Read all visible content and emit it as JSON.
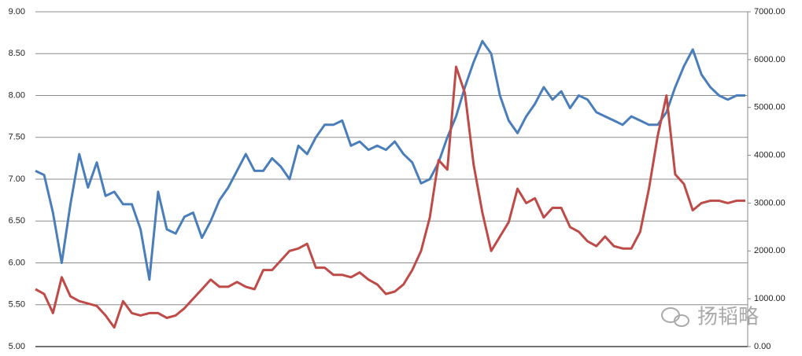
{
  "chart_data": {
    "type": "line",
    "categories": [
      null,
      null,
      null,
      null,
      null,
      null,
      null,
      null,
      null,
      null,
      null,
      null,
      null,
      null,
      null,
      null,
      null,
      null,
      null,
      null,
      null,
      null,
      null,
      null,
      null,
      null,
      null,
      null,
      null,
      null,
      null,
      null,
      null,
      null,
      null,
      null,
      null,
      null,
      null,
      null,
      null,
      null,
      null,
      null,
      null,
      null,
      null,
      null,
      null,
      null,
      null,
      null,
      null,
      null,
      null,
      null,
      null,
      null,
      null,
      null,
      null,
      null,
      null,
      null,
      null,
      null,
      null,
      null,
      null,
      null,
      null,
      null,
      null,
      null,
      null,
      null,
      null,
      null,
      null,
      null,
      null,
      null
    ],
    "series": [
      {
        "color": "#4a7ebb",
        "values": [
          7.1,
          7.05,
          6.6,
          6.0,
          6.7,
          7.3,
          6.9,
          7.2,
          6.8,
          6.85,
          6.7,
          6.7,
          6.4,
          5.8,
          6.85,
          6.4,
          6.35,
          6.55,
          6.6,
          6.3,
          6.5,
          6.75,
          6.9,
          7.1,
          7.3,
          7.1,
          7.1,
          7.25,
          7.15,
          7.0,
          7.4,
          7.3,
          7.5,
          7.65,
          7.65,
          7.7,
          7.4,
          7.45,
          7.35,
          7.4,
          7.35,
          7.45,
          7.3,
          7.2,
          6.95,
          7.0,
          7.2,
          7.5,
          7.75,
          8.1,
          8.4,
          8.65,
          8.5,
          8.0,
          7.7,
          7.55,
          7.75,
          7.9,
          8.1,
          7.95,
          8.05,
          7.85,
          8.0,
          7.95,
          7.8,
          7.75,
          7.7,
          7.65,
          7.75,
          7.7,
          7.65,
          7.65,
          7.8,
          8.1,
          8.35,
          8.55,
          8.25,
          8.1,
          8.0,
          7.95,
          8.0,
          8.0
        ]
      },
      {
        "color": "#be4b48",
        "axis": "y2",
        "values": [
          1200,
          1100,
          700,
          1450,
          1050,
          950,
          900,
          850,
          650,
          400,
          950,
          700,
          650,
          700,
          700,
          600,
          650,
          800,
          1000,
          1200,
          1400,
          1250,
          1250,
          1350,
          1250,
          1200,
          1600,
          1600,
          1800,
          2000,
          2050,
          2150,
          1650,
          1650,
          1500,
          1500,
          1450,
          1550,
          1400,
          1300,
          1100,
          1150,
          1300,
          1600,
          2000,
          2700,
          3900,
          3700,
          5850,
          5300,
          3800,
          2800,
          2000,
          2300,
          2600,
          3300,
          3000,
          3100,
          2700,
          2900,
          2900,
          2500,
          2400,
          2200,
          2100,
          2300,
          2100,
          2050,
          2050,
          2400,
          3300,
          4400,
          5250,
          3600,
          3400,
          2850,
          3000,
          3050,
          3050,
          3000,
          3050,
          3050
        ]
      }
    ],
    "ylim": [
      5,
      9
    ],
    "yticks": [
      {
        "value": 5,
        "label": "5.00"
      },
      {
        "value": 5.5,
        "label": "5.50"
      },
      {
        "value": 6,
        "label": "6.00"
      },
      {
        "value": 6.5,
        "label": "6.50"
      },
      {
        "value": 7,
        "label": "7.00"
      },
      {
        "value": 7.5,
        "label": "7.50"
      },
      {
        "value": 8,
        "label": "8.00"
      },
      {
        "value": 8.5,
        "label": "8.50"
      },
      {
        "value": 9,
        "label": "9.00"
      }
    ],
    "y2lim": [
      0,
      7000
    ],
    "y2ticks": [
      {
        "value": 0,
        "label": "0.00"
      },
      {
        "value": 1000,
        "label": "1000.00"
      },
      {
        "value": 2000,
        "label": "2000.00"
      },
      {
        "value": 3000,
        "label": "3000.00"
      },
      {
        "value": 4000,
        "label": "4000.00"
      },
      {
        "value": 5000,
        "label": "5000.00"
      },
      {
        "value": 6000,
        "label": "6000.00"
      },
      {
        "value": 7000,
        "label": "7000.00"
      }
    ],
    "grid": true,
    "watermark": "扬韬略"
  }
}
